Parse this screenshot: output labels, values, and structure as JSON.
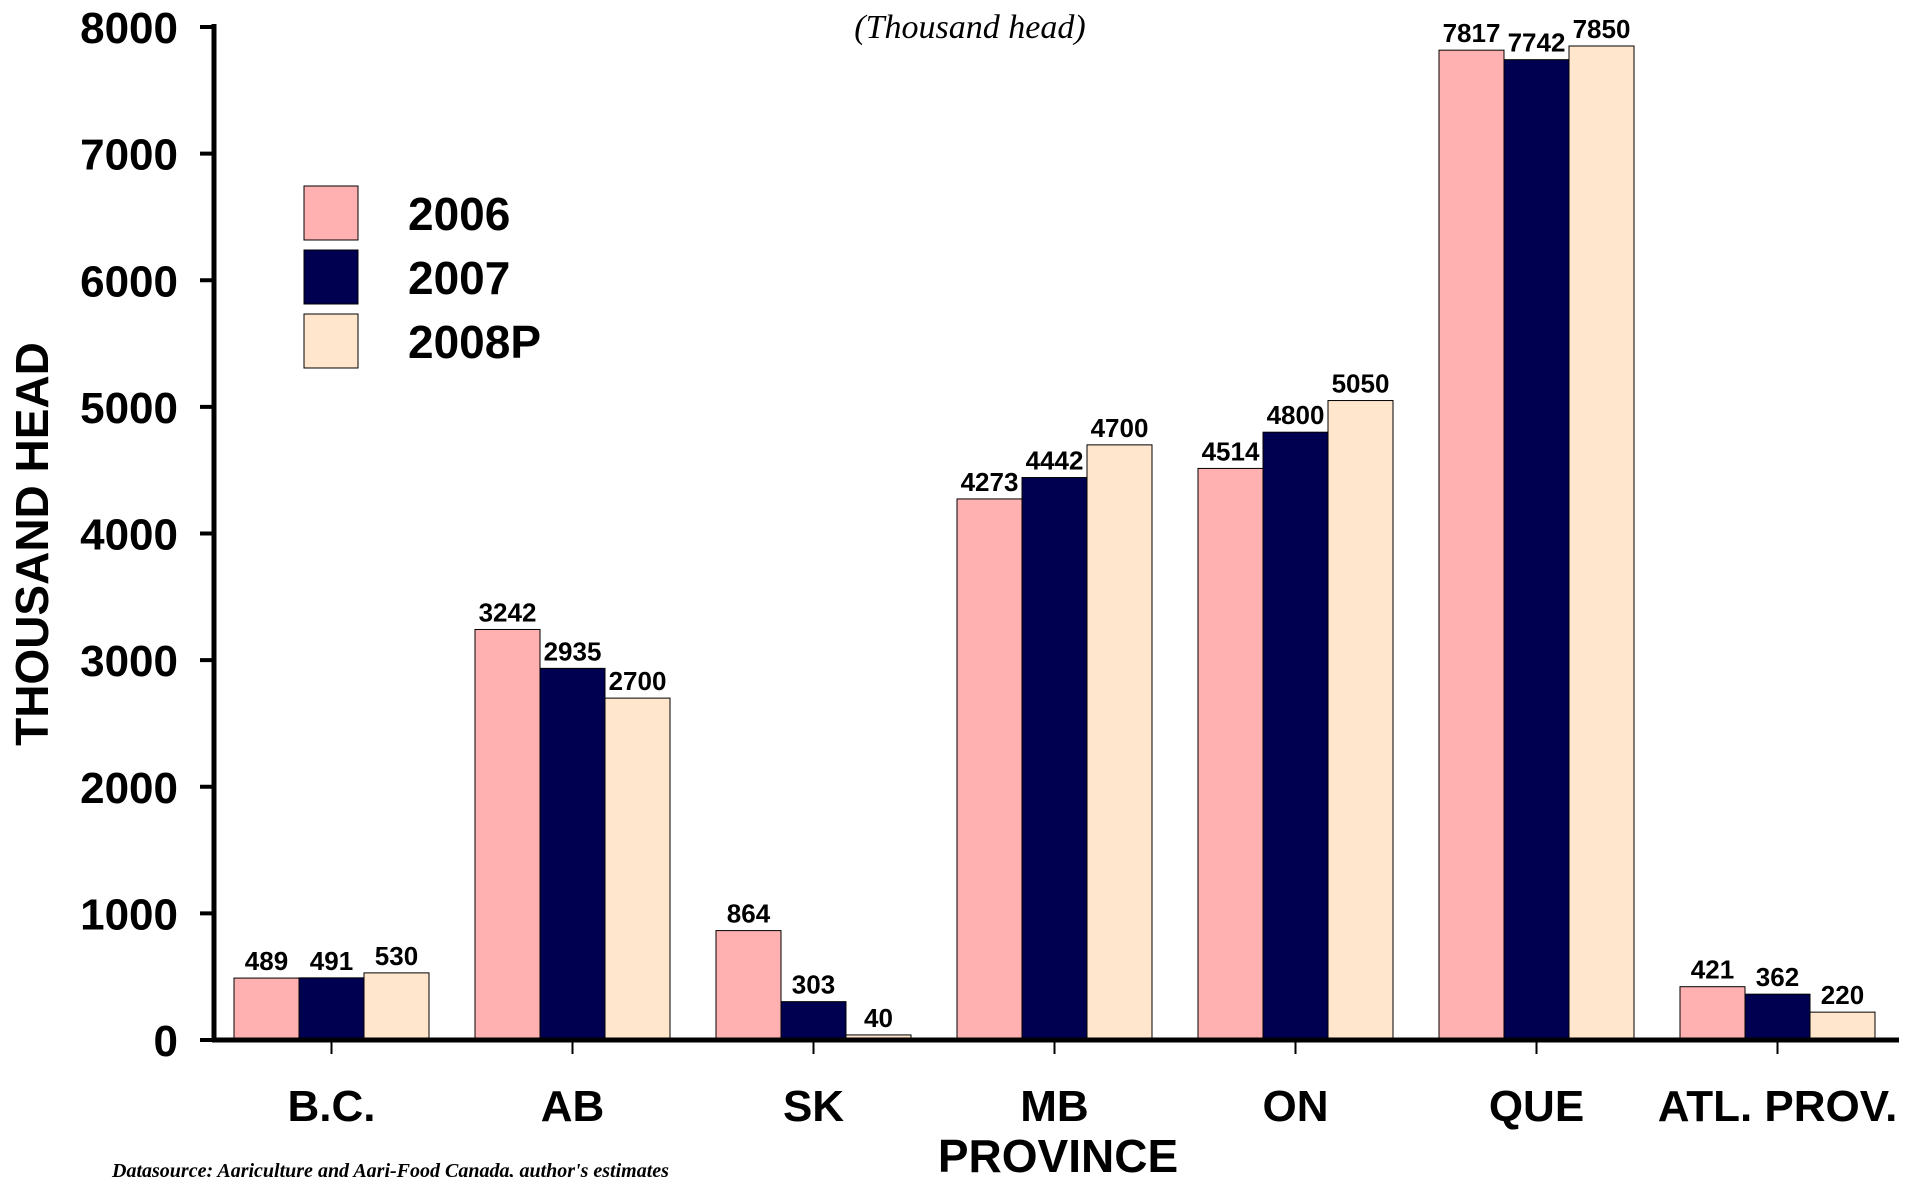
{
  "chart_data": {
    "type": "bar",
    "subtitle": "(Thousand head)",
    "xlabel": "PROVINCE",
    "ylabel": "THOUSAND HEAD",
    "ylim": [
      0,
      8000
    ],
    "yticks": [
      "0",
      "1000",
      "2000",
      "3000",
      "4000",
      "5000",
      "6000",
      "7000",
      "8000"
    ],
    "categories": [
      "B.C.",
      "AB",
      "SK",
      "MB",
      "ON",
      "QUE",
      "ATL. PROV."
    ],
    "series": [
      {
        "name": "2006",
        "color": "#FFB0B0",
        "values": [
          489,
          3242,
          864,
          4273,
          4514,
          7817,
          421
        ]
      },
      {
        "name": "2007",
        "color": "#000050",
        "values": [
          491,
          2935,
          303,
          4442,
          4800,
          7742,
          362
        ]
      },
      {
        "name": "2008P",
        "color": "#FFE6CC",
        "values": [
          530,
          2700,
          40,
          4700,
          5050,
          7850,
          220
        ]
      }
    ],
    "legend_position": "top-left",
    "source": "Datasource: Agriculture and Agri-Food Canada, author's estimates"
  }
}
